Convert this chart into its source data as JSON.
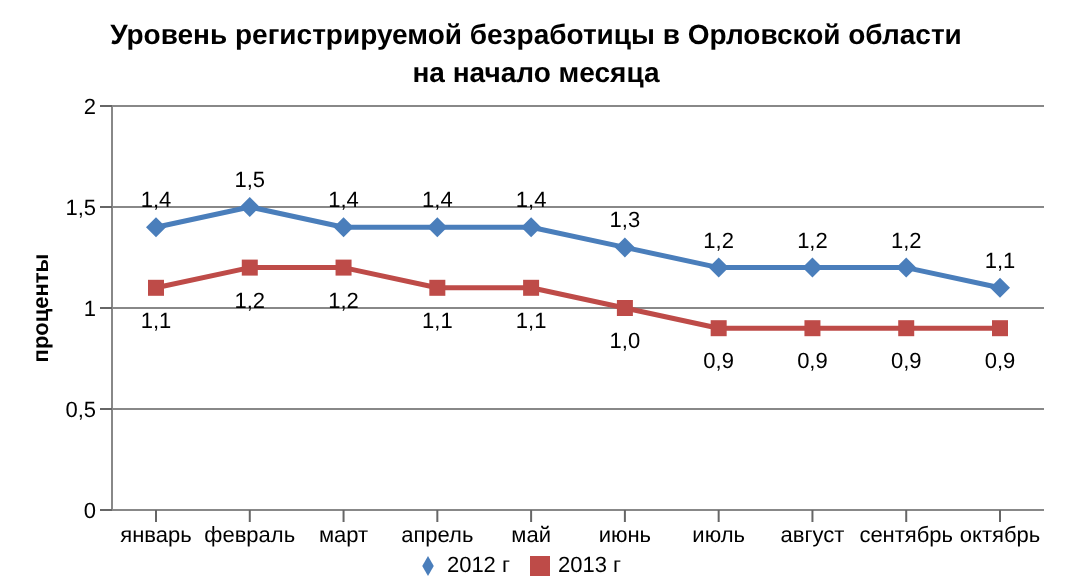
{
  "chart_data": {
    "type": "line",
    "title": "Уровень регистрируемой безработицы в Орловской области\nна начало месяца",
    "ylabel": "проценты",
    "categories": [
      "январь",
      "февраль",
      "март",
      "апрель",
      "май",
      "июнь",
      "июль",
      "август",
      "сентябрь",
      "октябрь"
    ],
    "series": [
      {
        "name": "2012 г",
        "color": "#4a7ebb",
        "marker": "diamond",
        "values": [
          1.4,
          1.5,
          1.4,
          1.4,
          1.4,
          1.3,
          1.2,
          1.2,
          1.2,
          1.1
        ],
        "value_labels": [
          "1,4",
          "1,5",
          "1,4",
          "1,4",
          "1,4",
          "1,3",
          "1,2",
          "1,2",
          "1,2",
          "1,1"
        ]
      },
      {
        "name": "2013 г",
        "color": "#be4b48",
        "marker": "square",
        "values": [
          1.1,
          1.2,
          1.2,
          1.1,
          1.1,
          1.0,
          0.9,
          0.9,
          0.9,
          0.9
        ],
        "value_labels": [
          "1,1",
          "1,2",
          "1,2",
          "1,1",
          "1,1",
          "1,0",
          "0,9",
          "0,9",
          "0,9",
          "0,9"
        ]
      }
    ],
    "ylim": [
      0,
      2
    ],
    "yticks": [
      0,
      {
        "value": 0.5,
        "label": "0,5"
      },
      1,
      {
        "value": 1.5,
        "label": "1,5"
      },
      2
    ],
    "grid": "y",
    "legend": "bottom"
  }
}
